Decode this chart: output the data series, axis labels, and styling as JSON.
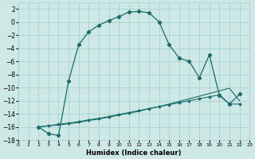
{
  "xlabel": "Humidex (Indice chaleur)",
  "xlim": [
    0,
    23
  ],
  "ylim": [
    -18,
    3
  ],
  "bg_color": "#cde8e5",
  "grid_color": "#9ecfcc",
  "line_color": "#1a6b6b",
  "curve1_x": [
    2,
    3,
    4,
    5,
    6,
    7,
    8,
    9,
    10,
    11,
    12,
    13,
    14,
    15,
    16,
    17,
    18,
    19,
    20,
    21,
    22
  ],
  "curve1_y": [
    -16.0,
    -17.0,
    -17.3,
    -9.0,
    -3.5,
    -1.5,
    -0.5,
    0.2,
    0.8,
    1.5,
    1.6,
    1.4,
    0.0,
    -3.5,
    -5.5,
    -6.0,
    -8.5,
    -5.0,
    -11.2,
    -12.5,
    -11.0
  ],
  "curve2_x": [
    2,
    3,
    4,
    5,
    6,
    7,
    8,
    9,
    10,
    11,
    12,
    13,
    14,
    15,
    16,
    17,
    18,
    19,
    20,
    21,
    22
  ],
  "curve2_y": [
    -16.0,
    -15.8,
    -15.6,
    -15.4,
    -15.2,
    -14.9,
    -14.7,
    -14.4,
    -14.1,
    -13.8,
    -13.5,
    -13.2,
    -12.9,
    -12.6,
    -12.3,
    -12.0,
    -11.7,
    -11.4,
    -11.1,
    -12.5,
    -12.5
  ],
  "curve3_x": [
    2,
    3,
    4,
    5,
    6,
    7,
    8,
    9,
    10,
    11,
    12,
    13,
    14,
    15,
    16,
    17,
    18,
    19,
    20,
    21,
    22
  ],
  "curve3_y": [
    -16.0,
    -15.8,
    -15.7,
    -15.5,
    -15.3,
    -15.0,
    -14.8,
    -14.5,
    -14.2,
    -13.9,
    -13.6,
    -13.2,
    -12.9,
    -12.5,
    -12.1,
    -11.7,
    -11.3,
    -10.9,
    -10.5,
    -10.1,
    -12.0
  ],
  "yticks": [
    2,
    0,
    -2,
    -4,
    -6,
    -8,
    -10,
    -12,
    -14,
    -16,
    -18
  ],
  "xticks": [
    0,
    1,
    2,
    3,
    4,
    5,
    6,
    7,
    8,
    9,
    10,
    11,
    12,
    13,
    14,
    15,
    16,
    17,
    18,
    19,
    20,
    21,
    22,
    23
  ]
}
